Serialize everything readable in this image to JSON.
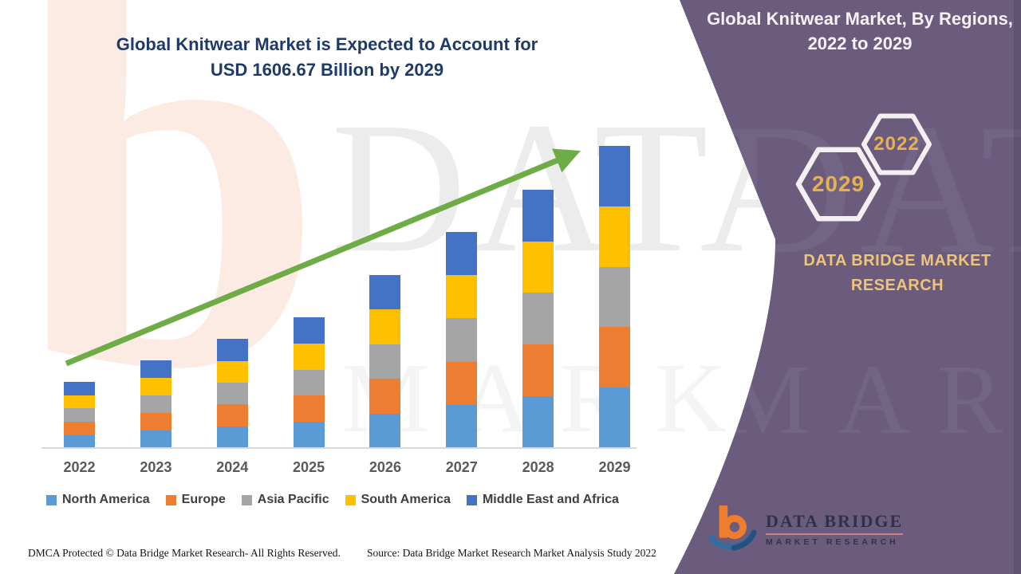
{
  "theme": {
    "panel_purple": "#6B5C7E",
    "panel_purple_dark": "#594B6C",
    "title_blue": "#1F3A68",
    "gold": "#E7B14E",
    "gold_light": "#EDC479",
    "arrow_green": "#6EAC45",
    "axis_gray": "#D9D9D9",
    "label_gray": "#595959",
    "legend_text": "#3F3F3F",
    "hex_stroke": "#F4F0F2",
    "watermark_gray": "#ECECEC",
    "watermark_peach": "#FBEBE2",
    "footer_text": "#141414",
    "panel_title_white": "#F6F1F6"
  },
  "main_title": {
    "line1": "Global Knitwear Market is Expected to Account for",
    "line2": "USD 1606.67 Billion by 2029"
  },
  "panel": {
    "title_line1": "Global Knitwear Market, By Regions,",
    "title_line2": "2022 to 2029",
    "hex_large_year": "2029",
    "hex_small_year": "2022",
    "brand_line1": "DATA BRIDGE MARKET",
    "brand_line2": "RESEARCH"
  },
  "logo": {
    "name": "DATA BRIDGE",
    "subtitle": "MARKET RESEARCH"
  },
  "watermark": {
    "line1": "DATA BRIDGE",
    "line2": "MARKET RESEARCH",
    "peach_glyph": "b"
  },
  "footer": {
    "dmca": "DMCA Protected © Data Bridge Market Research- All Rights Reserved.",
    "source": "Source: Data Bridge Market Research Market Analysis Study 2022"
  },
  "chart_data": {
    "type": "bar",
    "stacked": true,
    "title": "Global Knitwear Market, By Regions, 2022 to 2029",
    "xlabel": "",
    "ylabel": "",
    "value_unit": "USD Billion",
    "grid": false,
    "legend_position": "bottom",
    "annotations": [
      "upward trend arrow across bar tops"
    ],
    "categories": [
      "2022",
      "2023",
      "2024",
      "2025",
      "2026",
      "2027",
      "2028",
      "2029"
    ],
    "totals": [
      350,
      465,
      580,
      695,
      920,
      1150,
      1375,
      1606.67
    ],
    "series": [
      {
        "name": "North America",
        "color": "#5B9BD5",
        "values": [
          70,
          93,
          116,
          139,
          184,
          230,
          275,
          321.33
        ]
      },
      {
        "name": "Europe",
        "color": "#ED7D31",
        "values": [
          70,
          93,
          116,
          139,
          184,
          230,
          275,
          321.33
        ]
      },
      {
        "name": "Asia Pacific",
        "color": "#A5A5A5",
        "values": [
          70,
          93,
          116,
          139,
          184,
          230,
          275,
          321.33
        ]
      },
      {
        "name": "South America",
        "color": "#FFC000",
        "values": [
          70,
          93,
          116,
          139,
          184,
          230,
          275,
          321.33
        ]
      },
      {
        "name": "Middle East and Africa",
        "color": "#4472C4",
        "values": [
          70,
          93,
          116,
          139,
          184,
          230,
          275,
          321.35
        ]
      }
    ]
  }
}
